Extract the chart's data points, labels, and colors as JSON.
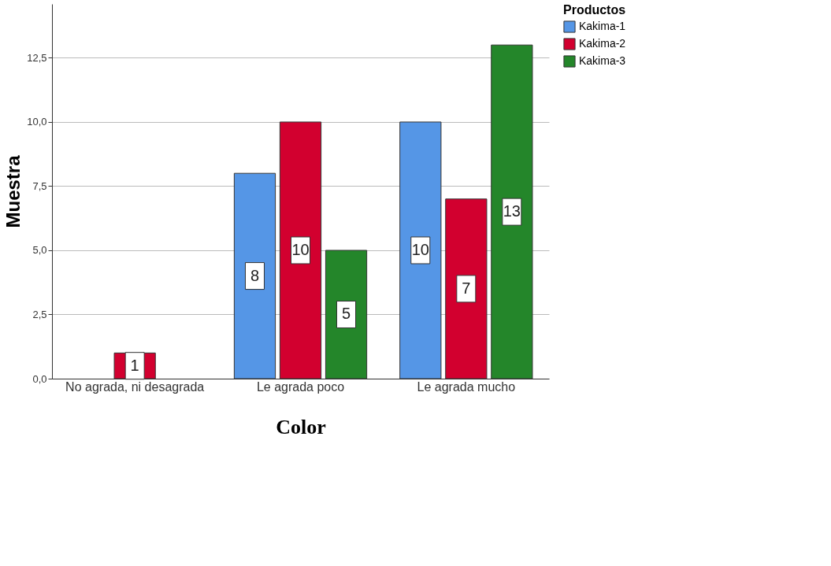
{
  "chart_data": {
    "type": "bar",
    "xlabel": "Color",
    "ylabel": "Muestra",
    "legend_title": "Productos",
    "categories": [
      "No agrada, ni desagrada",
      "Le agrada poco",
      "Le agrada mucho"
    ],
    "series": [
      {
        "name": "Kakima-1",
        "color": "#5596e6",
        "values": [
          null,
          8,
          10
        ]
      },
      {
        "name": "Kakima-2",
        "color": "#d2002f",
        "values": [
          1,
          10,
          7
        ]
      },
      {
        "name": "Kakima-3",
        "color": "#24862a",
        "values": [
          null,
          5,
          13
        ]
      }
    ],
    "ylim": [
      0,
      14.6
    ],
    "yticks": [
      {
        "value": 0,
        "label": "0,0"
      },
      {
        "value": 2.5,
        "label": "2,5"
      },
      {
        "value": 5,
        "label": "5,0"
      },
      {
        "value": 7.5,
        "label": "7,5"
      },
      {
        "value": 10,
        "label": "10,0"
      },
      {
        "value": 12.5,
        "label": "12,5"
      }
    ],
    "grid": "y",
    "legend": "top right",
    "data_labels": true
  }
}
